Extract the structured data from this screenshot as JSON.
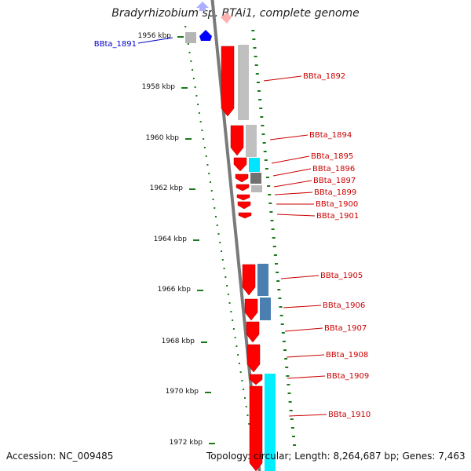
{
  "title": "Bradyrhizobium sp. BTAi1, complete genome",
  "footer": {
    "accession": "Accession: NC_009485",
    "topology": "Topology: circular; Length: 8,264,687 bp; Genes: 7,463"
  },
  "ruler_labels": [
    "1956 kbp",
    "1958 kbp",
    "1960 kbp",
    "1962 kbp",
    "1964 kbp",
    "1966 kbp",
    "1968 kbp",
    "1970 kbp",
    "1972 kbp"
  ],
  "colors": {
    "forward_gene": "#ff0000",
    "reverse_gene": "#0000ff",
    "label_forward": "#cc0000",
    "label_reverse": "#0000cc",
    "backbone": "#7a7a7a",
    "ruler_ticks": "#1a7a1a"
  },
  "genes": [
    {
      "label": "BBta_1891",
      "strand": "reverse"
    },
    {
      "label": "BBta_1892",
      "strand": "forward"
    },
    {
      "label": "BBta_1894",
      "strand": "forward"
    },
    {
      "label": "BBta_1895",
      "strand": "forward"
    },
    {
      "label": "BBta_1896",
      "strand": "forward"
    },
    {
      "label": "BBta_1897",
      "strand": "forward"
    },
    {
      "label": "BBta_1899",
      "strand": "forward"
    },
    {
      "label": "BBta_1900",
      "strand": "forward"
    },
    {
      "label": "BBta_1901",
      "strand": "forward"
    },
    {
      "label": "BBta_1905",
      "strand": "forward"
    },
    {
      "label": "BBta_1906",
      "strand": "forward"
    },
    {
      "label": "BBta_1907",
      "strand": "forward"
    },
    {
      "label": "BBta_1908",
      "strand": "forward"
    },
    {
      "label": "BBta_1909",
      "strand": "forward"
    },
    {
      "label": "BBta_1910",
      "strand": "forward"
    }
  ]
}
